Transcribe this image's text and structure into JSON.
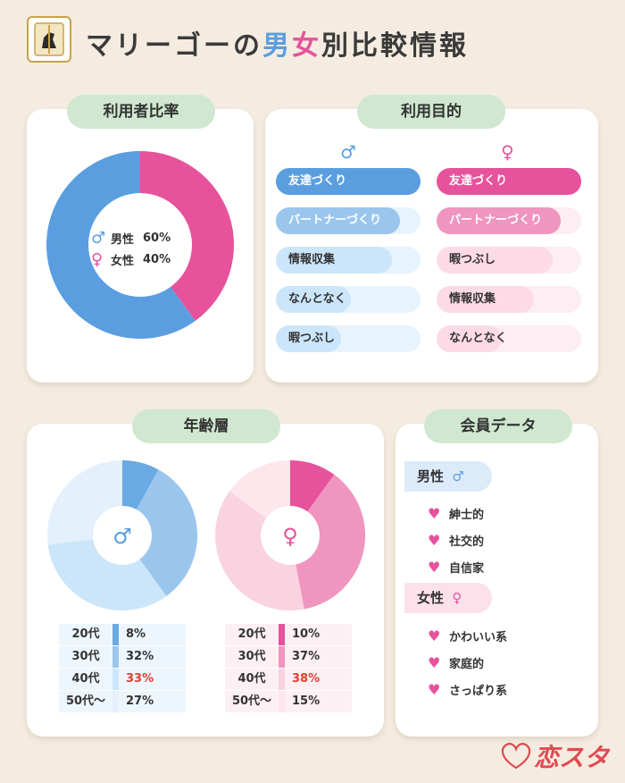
{
  "header": {
    "title_pre": "マリーゴーの",
    "title_male": "男",
    "title_female": "女",
    "title_post": "別比較情報"
  },
  "ratio": {
    "heading": "利用者比率",
    "male_label": "男性",
    "male_value": "60%",
    "female_label": "女性",
    "female_value": "40%",
    "male_share": 60,
    "female_share": 40
  },
  "purpose": {
    "heading": "利用目的",
    "male_symbol": "♂",
    "female_symbol": "♀",
    "male_items": [
      {
        "label": "友達づくり",
        "level": 1.0
      },
      {
        "label": "パートナーづくり",
        "level": 0.86
      },
      {
        "label": "情報収集",
        "level": 0.8
      },
      {
        "label": "なんとなく",
        "level": 0.52
      },
      {
        "label": "暇つぶし",
        "level": 0.45
      }
    ],
    "female_items": [
      {
        "label": "友達づくり",
        "level": 1.0
      },
      {
        "label": "パートナーづくり",
        "level": 0.86
      },
      {
        "label": "暇つぶし",
        "level": 0.8
      },
      {
        "label": "情報収集",
        "level": 0.67
      },
      {
        "label": "なんとなく",
        "level": 0.45
      }
    ]
  },
  "age": {
    "heading": "年齢層",
    "male": [
      {
        "age": "20代",
        "pct": "8%",
        "value": 8,
        "color": "#6aaae4"
      },
      {
        "age": "30代",
        "pct": "32%",
        "value": 32,
        "color": "#9ac6ee"
      },
      {
        "age": "40代",
        "pct": "33%",
        "value": 33,
        "color": "#cbe6fa",
        "highlight": true
      },
      {
        "age": "50代～",
        "pct": "27%",
        "value": 27,
        "color": "#e4f0fb"
      }
    ],
    "female": [
      {
        "age": "20代",
        "pct": "10%",
        "value": 10,
        "color": "#e6529b"
      },
      {
        "age": "30代",
        "pct": "37%",
        "value": 37,
        "color": "#ef95bf"
      },
      {
        "age": "40代",
        "pct": "38%",
        "value": 38,
        "color": "#f9d3df",
        "highlight": true
      },
      {
        "age": "50代～",
        "pct": "15%",
        "value": 15,
        "color": "#fde6ec"
      }
    ]
  },
  "members": {
    "heading": "会員データ",
    "male_label": "男性",
    "female_label": "女性",
    "male_traits": [
      "紳士的",
      "社交的",
      "自信家"
    ],
    "female_traits": [
      "かわいい系",
      "家庭的",
      "さっぱり系"
    ]
  },
  "brand": {
    "name": "恋スタ"
  },
  "colors": {
    "male": "#5a9ee0",
    "female": "#e6529b",
    "pill": "#cfe8cf",
    "highlight": "#e0402e"
  }
}
